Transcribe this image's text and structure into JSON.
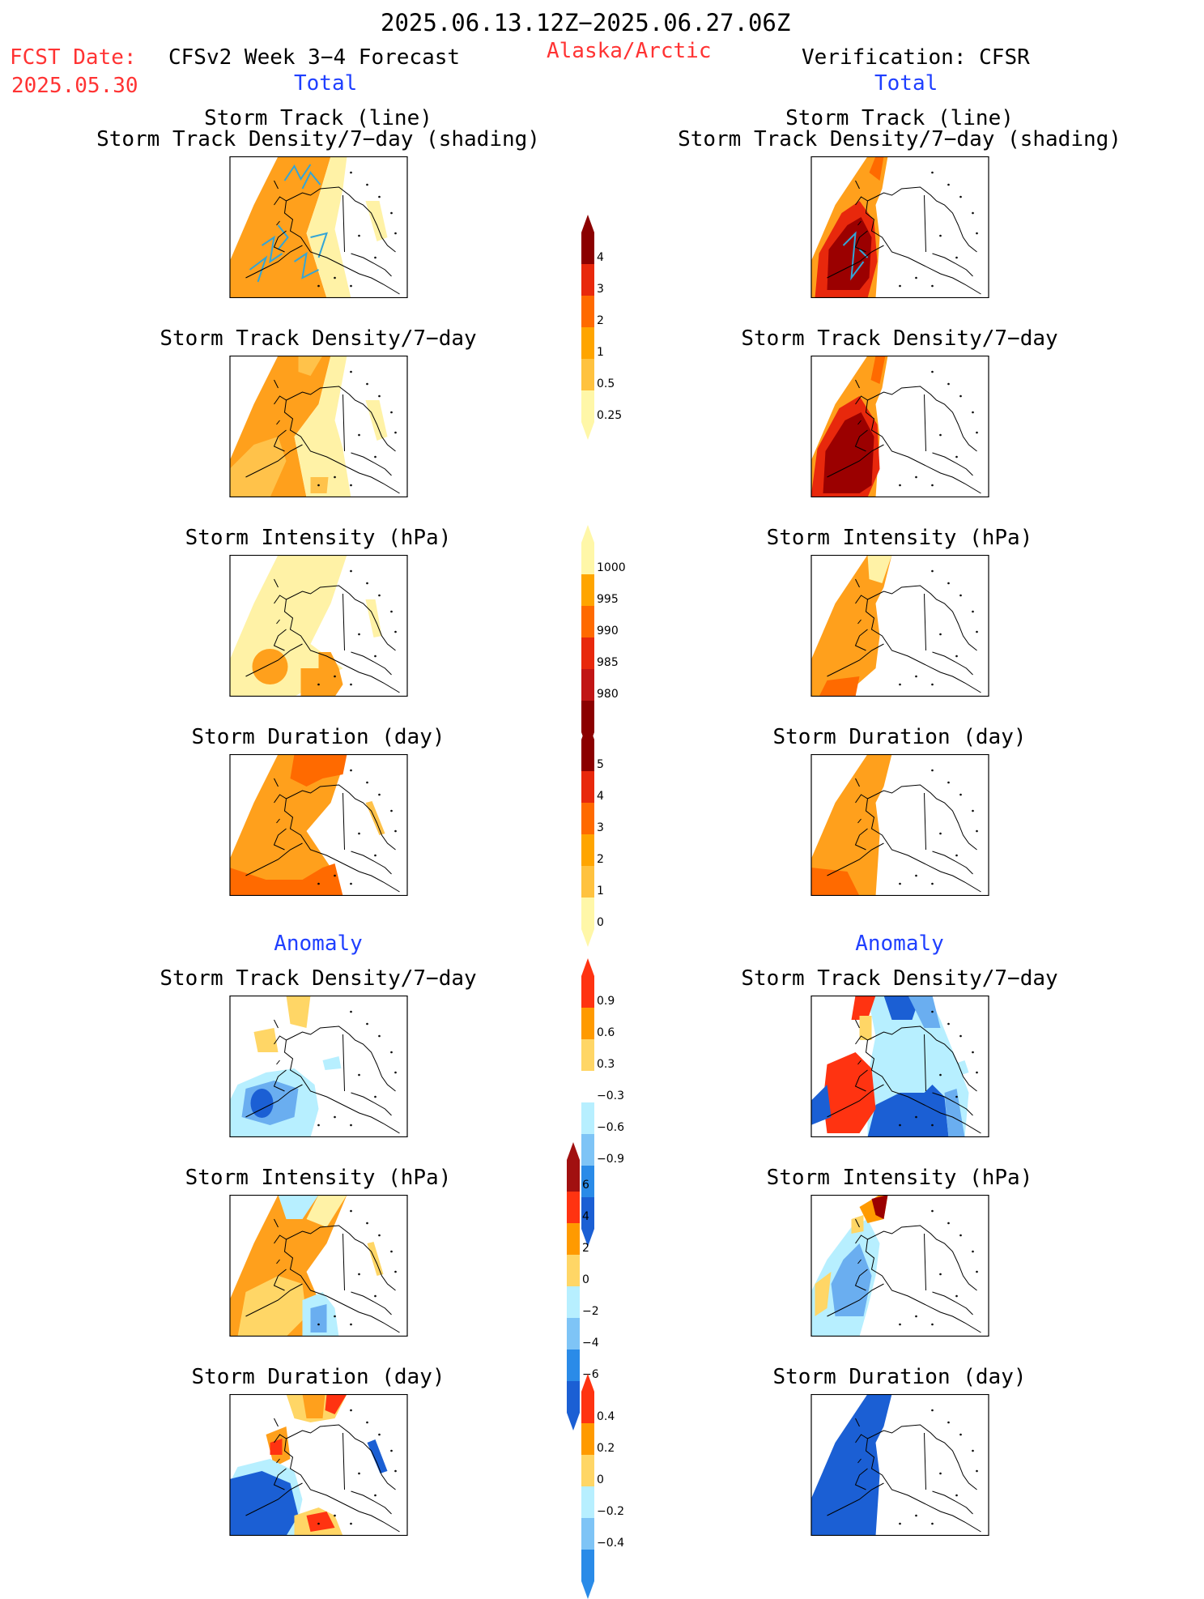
{
  "header": {
    "period": "2025.06.13.12Z−2025.06.27.06Z",
    "fcst_label": "FCST Date:",
    "fcst_date": "2025.05.30",
    "left_title": "CFSv2 Week 3−4 Forecast",
    "region": "Alaska/Arctic",
    "right_title": "Verification: CFSR",
    "left_total": "Total",
    "right_total": "Total"
  },
  "section_anomaly": {
    "left": "Anomaly",
    "right": "Anomaly"
  },
  "panel_titles": {
    "track_line": "Storm Track (line)",
    "track_shading": "Storm Track Density/7−day (shading)",
    "density": "Storm Track Density/7−day",
    "intensity": "Storm Intensity (hPa)",
    "duration": "Storm Duration (day)"
  },
  "colorbars": {
    "density": {
      "ticks": [
        "4",
        "3",
        "2",
        "1",
        "0.5",
        "0.25"
      ],
      "colors": [
        "#8b0000",
        "#e8280c",
        "#ff6a00",
        "#ffa500",
        "#ffc23f",
        "#fff7a8"
      ]
    },
    "intensity": {
      "ticks": [
        "1000",
        "995",
        "990",
        "985",
        "980"
      ],
      "colors": [
        "#fff7a8",
        "#ffa500",
        "#ff6a00",
        "#e8280c",
        "#c11515",
        "#8b0000"
      ]
    },
    "duration": {
      "ticks": [
        "5",
        "4",
        "3",
        "2",
        "1",
        "0"
      ],
      "colors": [
        "#8b0000",
        "#e8280c",
        "#ff6a00",
        "#ffa500",
        "#ffc23f",
        "#fff7a8"
      ]
    },
    "anom_density": {
      "ticks": [
        "0.9",
        "0.6",
        "0.3",
        "−0.3",
        "−0.6",
        "−0.9"
      ],
      "colors": [
        "#ff3311",
        "#ff9a00",
        "#ffd666",
        "#ffffff",
        "#b7efff",
        "#7ec4f6",
        "#2a8be8",
        "#1b5fd4"
      ]
    },
    "anom_intensity": {
      "ticks": [
        "6",
        "4",
        "2",
        "0",
        "−2",
        "−4",
        "−6"
      ],
      "colors": [
        "#a11010",
        "#ff3311",
        "#ff9a00",
        "#ffd666",
        "#b7efff",
        "#7ec4f6",
        "#2a8be8",
        "#1b5fd4"
      ]
    },
    "anom_duration": {
      "ticks": [
        "0.4",
        "0.2",
        "0",
        "−0.2",
        "−0.4"
      ],
      "colors": [
        "#ff3311",
        "#ff9a00",
        "#ffd666",
        "#b7efff",
        "#7ec4f6",
        "#2a8be8"
      ]
    }
  },
  "palette": {
    "light_yellow": "#fff2a6",
    "light_orange": "#ffc24a",
    "orange": "#ffa01c",
    "dark_orange": "#ff6a00",
    "red": "#e8280c",
    "dark_red": "#9b0000",
    "track_line": "#33a5d6",
    "light_blue": "#b7efff",
    "mid_blue": "#6aaef0",
    "blue": "#1b5fd4"
  }
}
